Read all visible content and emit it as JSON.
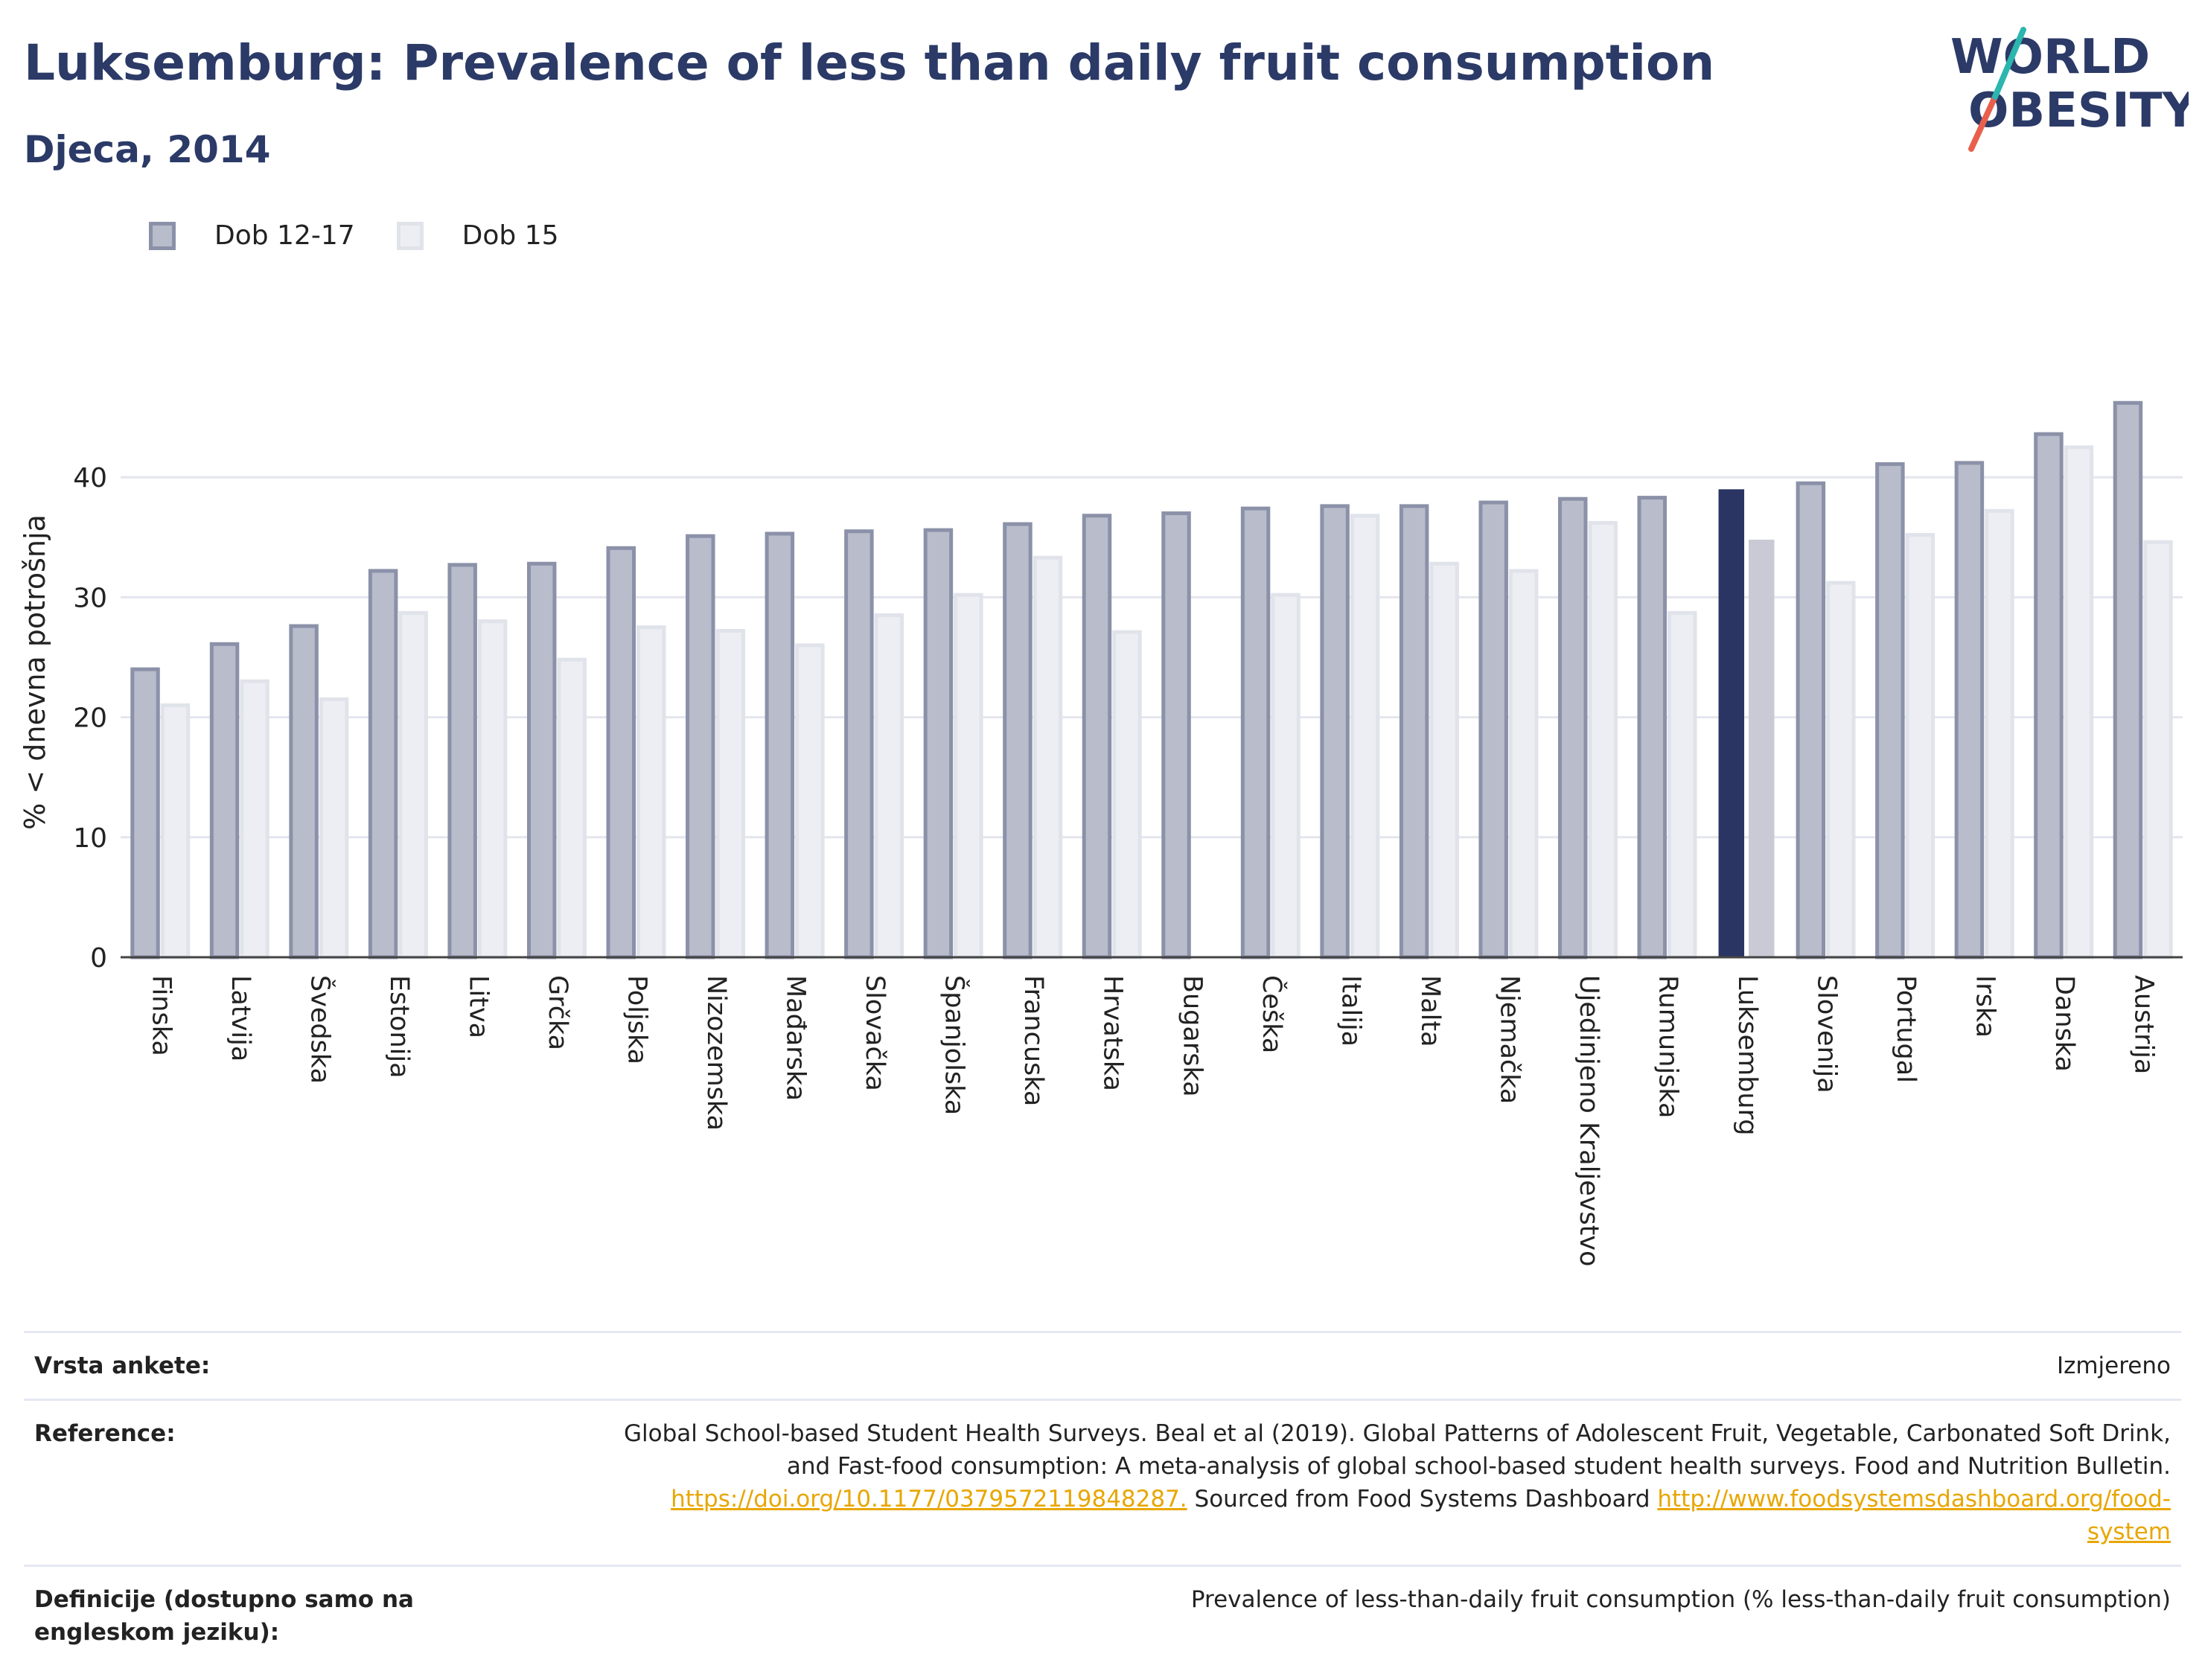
{
  "header": {
    "title": "Luksemburg: Prevalence of less than daily fruit consumption",
    "subtitle": "Djeca, 2014",
    "logo_line1": "WORLD",
    "logo_line2": "OBESITY"
  },
  "legend": {
    "items": [
      {
        "label": "Dob 12-17"
      },
      {
        "label": "Dob 15"
      }
    ]
  },
  "colors": {
    "series1": "#b8bccb",
    "series1_border": "#8b91a8",
    "series2": "#eceef3",
    "series2_border": "#e0e3ea",
    "highlight1": "#2b3563",
    "highlight2": "#c9cad6",
    "title": "#2b3a67",
    "link": "#e8a600"
  },
  "chart_data": {
    "type": "bar",
    "ylabel": "% < dnevna potrošnja",
    "xlabel": "",
    "ylim": [
      0,
      50
    ],
    "yticks": [
      0,
      10,
      20,
      30,
      40
    ],
    "grid": true,
    "legend_position": "top-left",
    "highlight_category": "Luksemburg",
    "categories": [
      "Finska",
      "Latvija",
      "Švedska",
      "Estonija",
      "Litva",
      "Grčka",
      "Poljska",
      "Nizozemska",
      "Mađarska",
      "Slovačka",
      "Španjolska",
      "Francuska",
      "Hrvatska",
      "Bugarska",
      "Češka",
      "Italija",
      "Malta",
      "Njemačka",
      "Ujedinjeno Kraljevstvo",
      "Rumunjska",
      "Luksemburg",
      "Slovenija",
      "Portugal",
      "Irska",
      "Danska",
      "Austrija"
    ],
    "series": [
      {
        "name": "Dob 12-17",
        "values": [
          24.0,
          26.1,
          27.6,
          32.2,
          32.7,
          32.8,
          34.1,
          35.1,
          35.3,
          35.5,
          35.6,
          36.1,
          36.8,
          37.0,
          37.4,
          37.6,
          37.6,
          37.9,
          38.2,
          38.3,
          39.0,
          39.5,
          41.1,
          41.2,
          43.6,
          46.2
        ]
      },
      {
        "name": "Dob 15",
        "values": [
          21.0,
          23.0,
          21.5,
          28.7,
          28.0,
          24.8,
          27.5,
          27.2,
          26.0,
          28.5,
          30.2,
          33.3,
          27.1,
          null,
          30.2,
          36.8,
          32.8,
          32.2,
          36.2,
          28.7,
          34.8,
          31.2,
          35.2,
          37.2,
          42.5,
          34.6
        ]
      }
    ]
  },
  "meta": {
    "survey_type_key": "Vrsta ankete:",
    "survey_type_val": "Izmjereno",
    "reference_key": "Reference:",
    "reference_line1": "Global School-based Student Health Surveys. Beal et al (2019). Global Patterns of Adolescent Fruit, Vegetable, Carbonated Soft Drink,",
    "reference_line2": "and Fast-food consumption: A meta-analysis of global school-based student health surveys. Food and Nutrition Bulletin.",
    "reference_link1": "https://doi.org/10.1177/0379572119848287.",
    "reference_mid": " Sourced from Food Systems Dashboard ",
    "reference_link2a": "http://www.foodsystemsdashboard.org/food-",
    "reference_link2b": "system",
    "definition_key": "Definicije (dostupno samo na engleskom jeziku):",
    "definition_val": "Prevalence of less-than-daily fruit consumption (% less-than-daily fruit consumption)"
  }
}
